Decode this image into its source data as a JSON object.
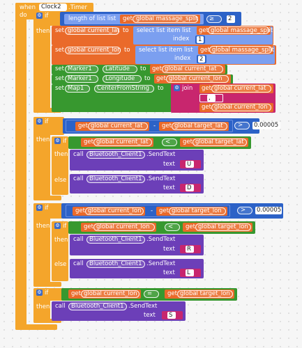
{
  "event": {
    "when": "when",
    "component": "Clock2",
    "event_name": ".Timer",
    "do": "do"
  },
  "keywords": {
    "if": "if",
    "then": "then",
    "else": "else",
    "set": "set",
    "to": "to",
    "get": "get",
    "call": "call",
    "join": "join",
    "index": "index",
    "text_param": "text",
    "gear": "⚙"
  },
  "vars": {
    "massage_split": "global massage_split",
    "current_lat": "global current_lat",
    "current_lon": "global current_lon",
    "target_lat": "global target_lat",
    "target_lon": "global target_lon"
  },
  "list_blocks": {
    "length_of_list": "length of list  list",
    "select_list_item": "select list item  list"
  },
  "operators": {
    "gte": "≥",
    "lt": "<",
    "gt": ">",
    "minus": "-",
    "eq": "="
  },
  "numbers": {
    "two": "2",
    "one": "1",
    "threshold": "0.00005"
  },
  "components": {
    "marker1": "Marker1",
    "map1": "Map1",
    "bt": "Bluetooth_Client1",
    "latitude": "Latitude",
    "longitude": "Longitude",
    "center": "CenterFromString",
    "send_text": ".SendText"
  },
  "strings": {
    "comma": ",",
    "U": "U",
    "D": "D",
    "R": "R",
    "L": "L",
    "S": "S"
  },
  "colors": {
    "control": "#f4a52b",
    "variable": "#ea6a2a",
    "list": "#7b9ff0",
    "math": "#2c62c7",
    "logic": "#37982f",
    "text": "#c8266e",
    "procedure": "#6c3fb8"
  }
}
